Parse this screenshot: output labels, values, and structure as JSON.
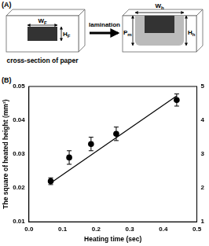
{
  "panel_a": {
    "label": "(A)",
    "caption": "cross-section of paper",
    "arrow_label": "lamination",
    "left_labels": {
      "width": {
        "main": "W",
        "sub": "F"
      },
      "height": {
        "main": "H",
        "sub": "F"
      }
    },
    "right_labels": {
      "width": {
        "main": "W",
        "sub": "h"
      },
      "penetration": {
        "main": "P",
        "sub": "m"
      },
      "height": {
        "main": "H",
        "sub": "h"
      }
    }
  },
  "panel_b": {
    "label": "(B)"
  },
  "chart_data": {
    "type": "scatter",
    "x_label": "Heating time (sec)",
    "y_label": "The square of heated height (mm²)",
    "series": [
      {
        "type": "scatter",
        "marker": "circle",
        "color": "#000000",
        "x": [
          0.065,
          0.12,
          0.185,
          0.26,
          0.44
        ],
        "values": [
          0.022,
          0.029,
          0.033,
          0.036,
          0.046
        ],
        "errors": [
          0.001,
          0.002,
          0.002,
          0.002,
          0.0018
        ]
      },
      {
        "type": "line",
        "line_style": "solid",
        "color": "#000000",
        "x": [
          0.065,
          0.44
        ],
        "values": [
          0.0215,
          0.0472
        ]
      }
    ],
    "xlim": [
      0,
      0.5
    ],
    "xticks": [
      {
        "value": 0,
        "label": "0.0"
      },
      0.1,
      0.2,
      0.3,
      0.4,
      0.5
    ],
    "ylim": [
      0.01,
      0.05
    ],
    "yticks": [
      0.01,
      0.02,
      0.03,
      0.04,
      0.05
    ],
    "y2lim": [
      1,
      5
    ],
    "y2ticks": [
      1,
      2,
      3,
      4,
      5
    ],
    "grid": false
  }
}
